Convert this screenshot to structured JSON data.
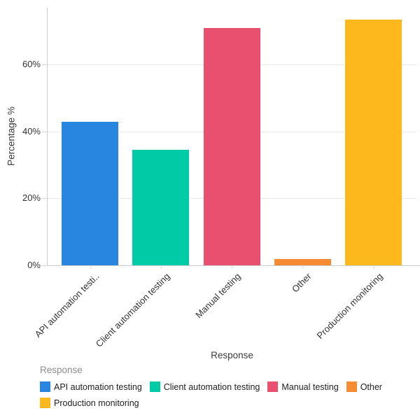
{
  "chart_data": {
    "type": "bar",
    "title": "",
    "categories": [
      "API automation testing",
      "Client automation testing",
      "Manual testing",
      "Other",
      "Production monitoring"
    ],
    "xtick_labels": [
      "API automation testi..",
      "Client automation testing",
      "Manual testing",
      "Other",
      "Production monitoring"
    ],
    "values": [
      42.9,
      34.4,
      70.8,
      1.9,
      73.4
    ],
    "bar_colors": [
      "#2886E0",
      "#00CBA7",
      "#E94F6F",
      "#F68B33",
      "#FDB81E"
    ],
    "xlabel": "Response",
    "ylabel": "Percentage %",
    "ylim": [
      0,
      76.9
    ],
    "yticks": [
      0,
      20,
      40,
      60
    ],
    "ytick_labels": [
      "0%",
      "20%",
      "40%",
      "60%"
    ],
    "grid": "horizontal",
    "legend": {
      "title": "Response",
      "position": "bottom-left",
      "entries": [
        {
          "label": "API automation testing",
          "color": "#2886E0",
          "row": 0
        },
        {
          "label": "Client automation testing",
          "color": "#00CBA7",
          "row": 0
        },
        {
          "label": "Manual testing",
          "color": "#E94F6F",
          "row": 0
        },
        {
          "label": "Other",
          "color": "#F68B33",
          "row": 0
        },
        {
          "label": "Production monitoring",
          "color": "#FDB81E",
          "row": 1
        }
      ]
    }
  },
  "colors": {
    "background": "#ffffff",
    "axis_line": "#cccccc",
    "grid_line": "#e8e8e8",
    "tick_mark": "#d9d9d9",
    "tick_text": "#333333",
    "axis_title_text": "#3b3b3b",
    "legend_title_text": "#8c8c8c",
    "legend_label_text": "#212121"
  }
}
